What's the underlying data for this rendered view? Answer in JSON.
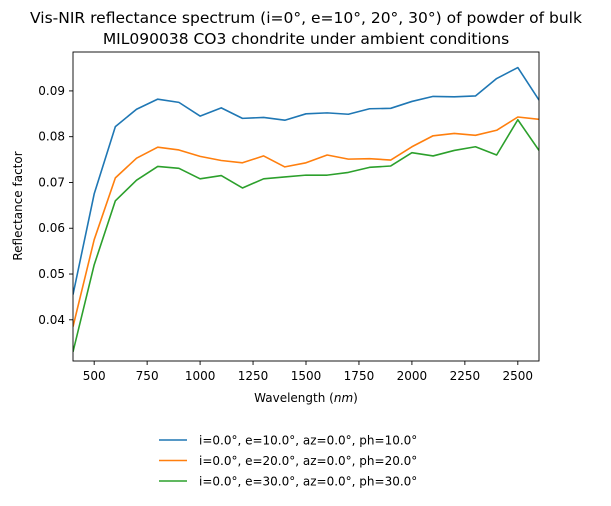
{
  "chart_data": {
    "type": "line",
    "title": "Vis-NIR reflectance spectrum (i=0°, e=10°, 20°, 30°) of powder of bulk",
    "subtitle": "MIL090038 CO3 chondrite under ambient conditions",
    "xlabel": "Wavelength (",
    "xlabel_italic": "nm",
    "xlabel_close": ")",
    "ylabel": "Reflectance factor",
    "xlim": [
      400,
      2600
    ],
    "ylim": [
      0.031,
      0.0985
    ],
    "xticks": [
      500,
      750,
      1000,
      1250,
      1500,
      1750,
      2000,
      2250,
      2500
    ],
    "yticks": [
      0.04,
      0.05,
      0.06,
      0.07,
      0.08,
      0.09
    ],
    "ytick_labels": [
      "0.04",
      "0.05",
      "0.06",
      "0.07",
      "0.08",
      "0.09"
    ],
    "grid": false,
    "legend_placement": "below",
    "x": [
      400,
      500,
      600,
      700,
      800,
      900,
      1000,
      1100,
      1200,
      1300,
      1400,
      1500,
      1600,
      1700,
      1800,
      1900,
      2000,
      2100,
      2200,
      2300,
      2400,
      2500,
      2600
    ],
    "series": [
      {
        "name": "i=0.0°, e=10.0°, az=0.0°, ph=10.0°",
        "color": "#1f77b4",
        "values": [
          0.0455,
          0.0675,
          0.0822,
          0.086,
          0.0882,
          0.0875,
          0.0845,
          0.0863,
          0.084,
          0.0842,
          0.0836,
          0.085,
          0.0852,
          0.0849,
          0.0861,
          0.0862,
          0.0877,
          0.0888,
          0.0887,
          0.0889,
          0.0927,
          0.0951,
          0.088
        ]
      },
      {
        "name": "i=0.0°, e=20.0°, az=0.0°, ph=20.0°",
        "color": "#ff7f0e",
        "values": [
          0.0385,
          0.0575,
          0.071,
          0.0753,
          0.0777,
          0.0771,
          0.0757,
          0.0748,
          0.0743,
          0.0758,
          0.0734,
          0.0743,
          0.076,
          0.0751,
          0.0752,
          0.0749,
          0.0778,
          0.0802,
          0.0807,
          0.0803,
          0.0814,
          0.0843,
          0.0838
        ]
      },
      {
        "name": "i=0.0°, e=30.0°, az=0.0°, ph=30.0°",
        "color": "#2ca02c",
        "values": [
          0.033,
          0.052,
          0.066,
          0.0705,
          0.0735,
          0.0731,
          0.0708,
          0.0715,
          0.0688,
          0.0708,
          0.0712,
          0.0716,
          0.0716,
          0.0722,
          0.0733,
          0.0736,
          0.0765,
          0.0758,
          0.077,
          0.0778,
          0.076,
          0.0837,
          0.077
        ]
      }
    ]
  }
}
